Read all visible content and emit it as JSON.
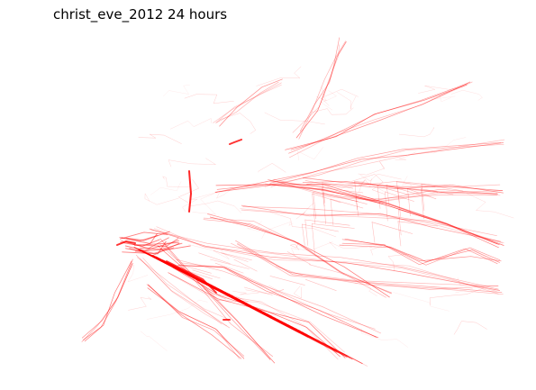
{
  "title": "christ_eve_2012 24 hours",
  "map": {
    "trace_color": "#ff0000",
    "background": "#ffffff",
    "layers": [
      "taxi-trip-traces"
    ]
  }
}
